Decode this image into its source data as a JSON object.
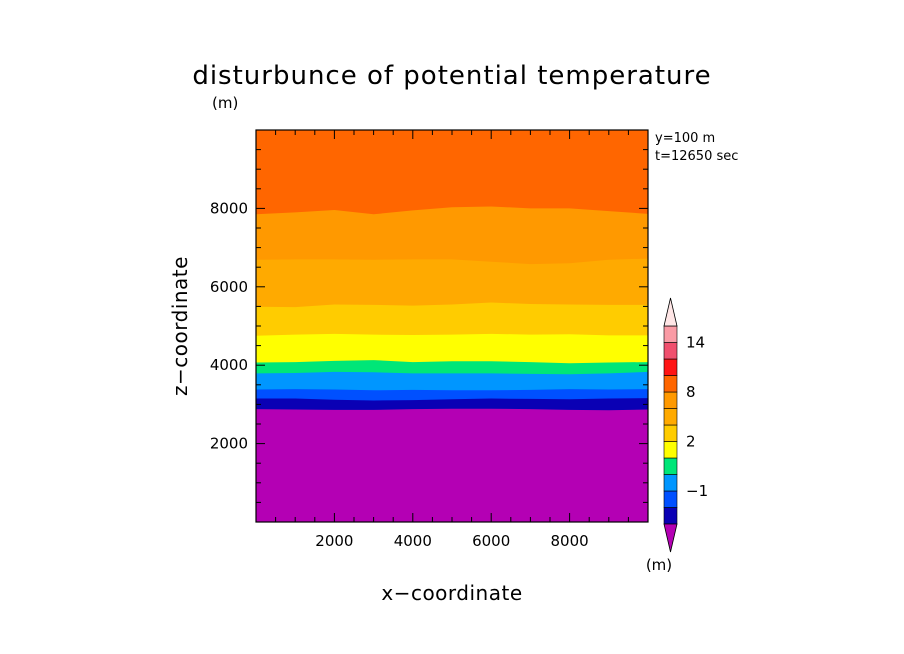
{
  "chart_data": {
    "type": "heatmap",
    "subtype": "filled-contour",
    "title": "disturbunce of potential temperature",
    "y_unit_label": "(m)",
    "xlabel": "x−coordinate",
    "ylabel": "z−coordinate",
    "xlim": [
      0,
      10000
    ],
    "ylim": [
      0,
      10000
    ],
    "x_ticks": [
      2000,
      4000,
      6000,
      8000
    ],
    "x_tick_labels": [
      "2000",
      "4000",
      "6000",
      "8000"
    ],
    "y_ticks": [
      2000,
      4000,
      6000,
      8000
    ],
    "y_tick_labels": [
      "2000",
      "4000",
      "6000",
      "8000"
    ],
    "annotations": [
      "y=100 m",
      "t=12650 sec"
    ],
    "colorbar": {
      "unit_label": "(m)",
      "levels": [
        -3,
        -2,
        -1,
        0,
        1,
        2,
        4,
        6,
        8,
        10,
        12,
        14,
        16
      ],
      "colors": [
        "#0a00b4",
        "#0050ff",
        "#0096ff",
        "#00e678",
        "#ffff00",
        "#ffcc00",
        "#ffaa00",
        "#ff9900",
        "#ff6600",
        "#ff1414",
        "#f0506e",
        "#fa9ba5"
      ],
      "below_color": "#b400b4",
      "above_color": "#ffe6e6",
      "tick_values": [
        -1,
        2,
        8,
        14
      ],
      "tick_labels": [
        "−1",
        "2",
        "8",
        "14"
      ]
    },
    "x_samples": [
      0,
      1000,
      2000,
      3000,
      4000,
      5000,
      6000,
      7000,
      8000,
      9000,
      10000
    ],
    "contours": [
      {
        "level": -3,
        "z": [
          2880,
          2870,
          2860,
          2860,
          2880,
          2890,
          2890,
          2880,
          2860,
          2850,
          2870
        ]
      },
      {
        "level": -2,
        "z": [
          3150,
          3150,
          3120,
          3100,
          3110,
          3130,
          3150,
          3140,
          3130,
          3150,
          3160
        ]
      },
      {
        "level": -1,
        "z": [
          3380,
          3390,
          3380,
          3360,
          3370,
          3360,
          3360,
          3370,
          3390,
          3380,
          3390
        ]
      },
      {
        "level": 0,
        "z": [
          3790,
          3800,
          3830,
          3820,
          3790,
          3790,
          3790,
          3780,
          3770,
          3790,
          3830
        ]
      },
      {
        "level": 1,
        "z": [
          4070,
          4080,
          4110,
          4130,
          4080,
          4100,
          4100,
          4080,
          4050,
          4070,
          4080
        ]
      },
      {
        "level": 2,
        "z": [
          4750,
          4780,
          4800,
          4780,
          4770,
          4780,
          4800,
          4780,
          4790,
          4760,
          4760
        ]
      },
      {
        "level": 4,
        "z": [
          5490,
          5480,
          5550,
          5540,
          5520,
          5550,
          5600,
          5560,
          5550,
          5540,
          5540
        ]
      },
      {
        "level": 6,
        "z": [
          6690,
          6700,
          6700,
          6690,
          6700,
          6700,
          6640,
          6580,
          6600,
          6690,
          6720
        ]
      },
      {
        "level": 8,
        "z": [
          7850,
          7900,
          7960,
          7850,
          7950,
          8030,
          8050,
          8000,
          8000,
          7930,
          7860
        ]
      }
    ]
  }
}
